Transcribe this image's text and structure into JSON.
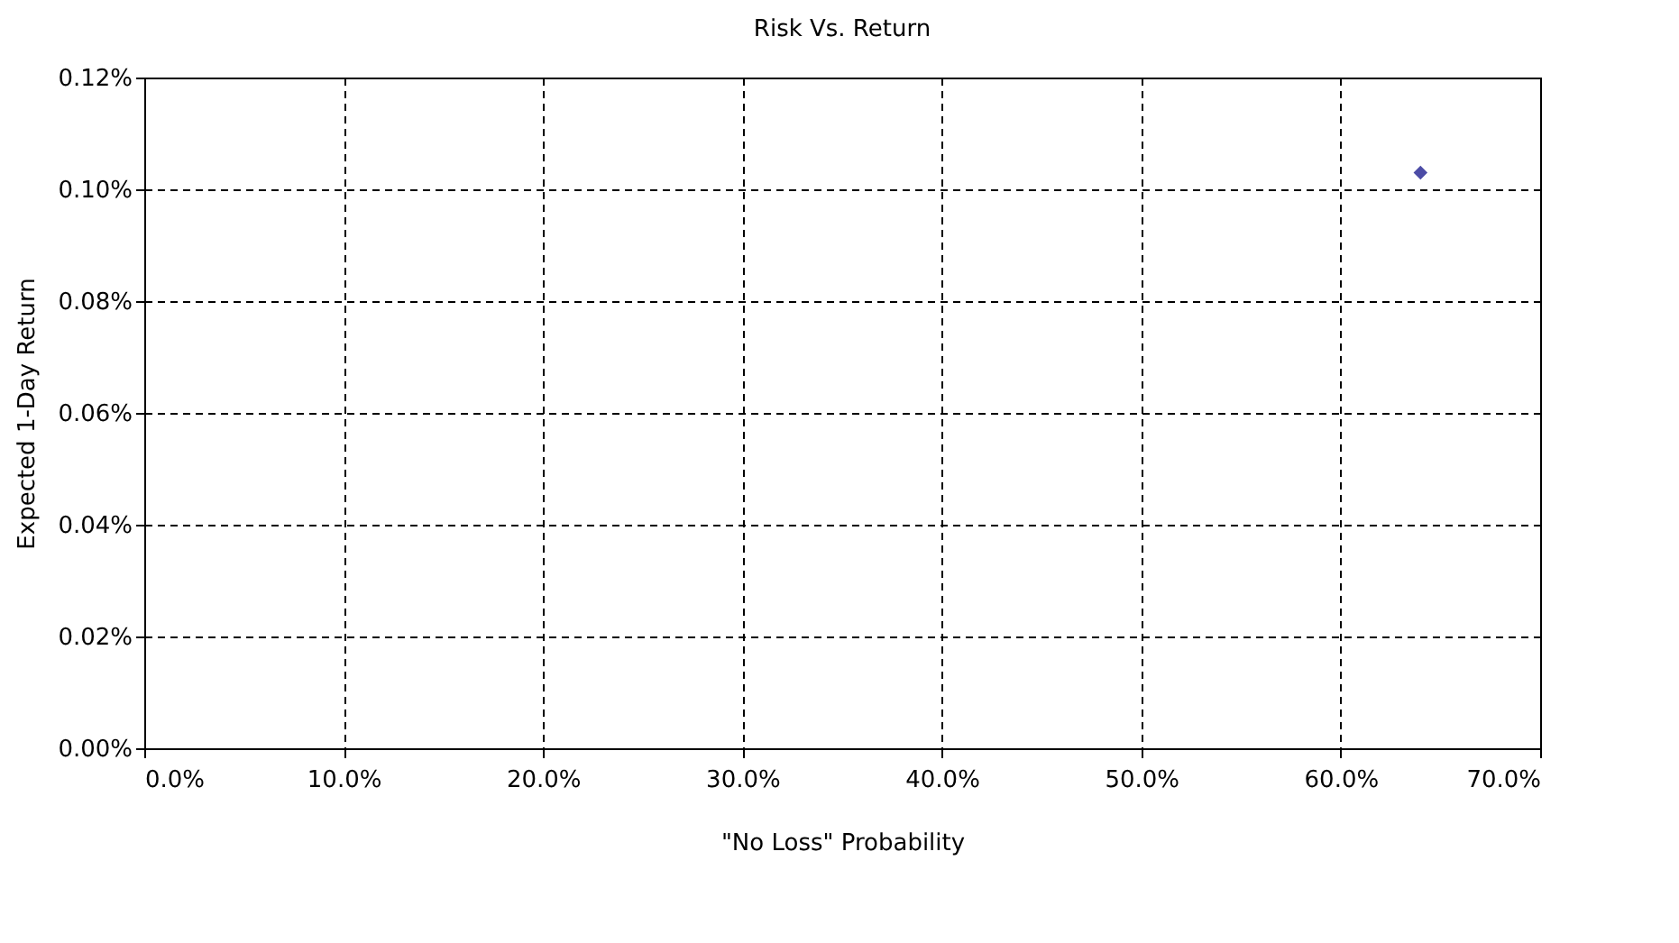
{
  "chart_data": {
    "type": "scatter",
    "title": "Risk Vs. Return",
    "xlabel": "\"No Loss\" Probability",
    "ylabel": "Expected 1-Day Return",
    "x": [
      64
    ],
    "series": [
      {
        "color": "#000080",
        "values": [
          0.103
        ]
      }
    ],
    "xlim": [
      0,
      70
    ],
    "ylim": [
      0,
      0.12
    ],
    "xticks": [
      {
        "value": 0,
        "label": "0.0%"
      },
      {
        "value": 10,
        "label": "10.0%"
      },
      {
        "value": 20,
        "label": "20.0%"
      },
      {
        "value": 30,
        "label": "30.0%"
      },
      {
        "value": 40,
        "label": "40.0%"
      },
      {
        "value": 50,
        "label": "50.0%"
      },
      {
        "value": 60,
        "label": "60.0%"
      },
      {
        "value": 70,
        "label": "70.0%"
      }
    ],
    "yticks": [
      {
        "value": 0,
        "label": "0.00%"
      },
      {
        "value": 0.02,
        "label": "0.02%"
      },
      {
        "value": 0.04,
        "label": "0.04%"
      },
      {
        "value": 0.06,
        "label": "0.06%"
      },
      {
        "value": 0.08,
        "label": "0.08%"
      },
      {
        "value": 0.1,
        "label": "0.10%"
      },
      {
        "value": 0.12,
        "label": "0.12%"
      }
    ],
    "grid": true,
    "marker": "diamond"
  }
}
